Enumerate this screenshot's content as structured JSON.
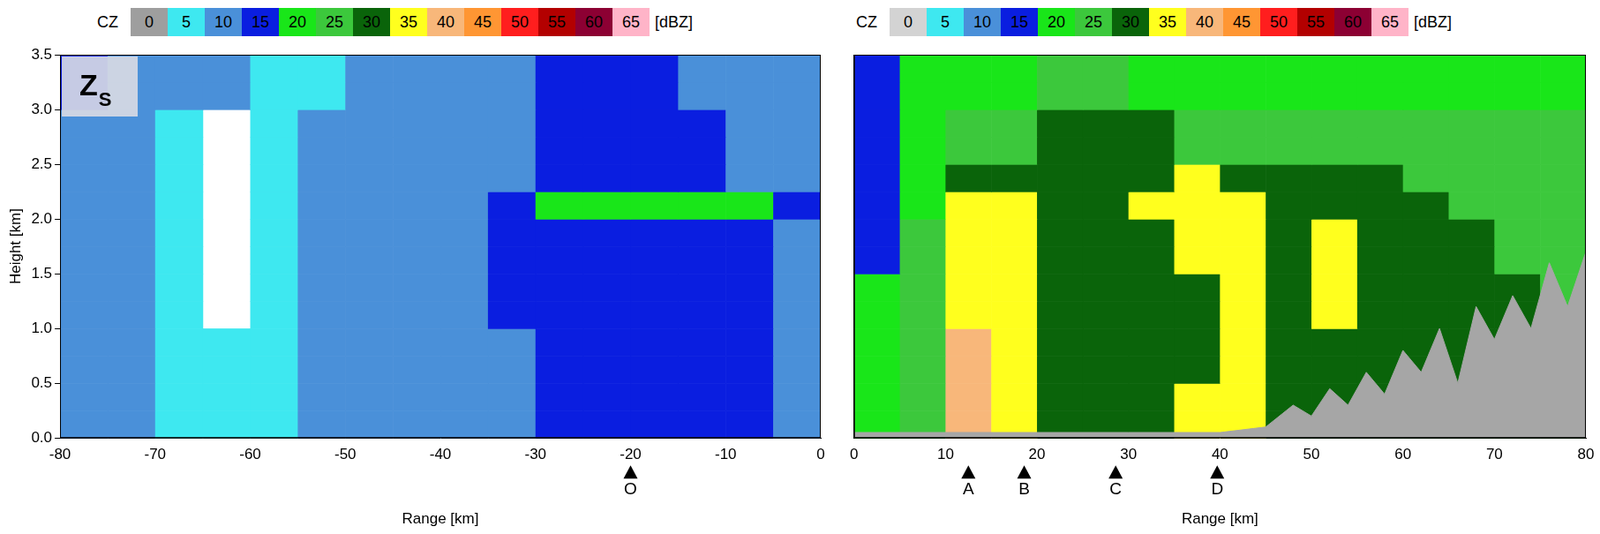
{
  "chart_data": [
    {
      "type": "heatmap",
      "panel_label": {
        "text": "Z",
        "subscript": "S"
      },
      "xlabel": "Range [km]",
      "ylabel": "Height [km]",
      "xlim": [
        -80,
        0
      ],
      "xticks": [
        -80,
        -70,
        -60,
        -50,
        -40,
        -30,
        -20,
        -10,
        0
      ],
      "ylim": [
        0,
        3.5
      ],
      "yticks": [
        {
          "value": 0,
          "label": "0.0"
        },
        0.5,
        {
          "value": 1,
          "label": "1.0"
        },
        1.5,
        {
          "value": 2,
          "label": "2.0"
        },
        2.5,
        {
          "value": 3,
          "label": "3.0"
        },
        3.5
      ],
      "grid": false,
      "colorbar": {
        "label": "CZ",
        "unit": "[dBZ]",
        "ticks": [
          0,
          5,
          10,
          15,
          20,
          25,
          30,
          35,
          40,
          45,
          50,
          55,
          60,
          65
        ],
        "colors": [
          "#9e9e9e",
          "#3ee8f0",
          "#4a90d9",
          "#0a1ee0",
          "#19e619",
          "#3cc83c",
          "#0a640a",
          "#ffff1e",
          "#f8b77a",
          "#ff9633",
          "#ff1e1e",
          "#b30000",
          "#8c0033",
          "#ffb4c8"
        ]
      },
      "cells": {
        "x_edges": [
          -80,
          -75,
          -70,
          -65,
          -60,
          -55,
          -50,
          -45,
          -40,
          -35,
          -30,
          -25,
          -20,
          -15,
          -10,
          -5,
          0
        ],
        "y_edges": [
          0,
          0.25,
          0.5,
          0.75,
          1,
          1.25,
          1.5,
          1.75,
          2,
          2.25,
          2.5,
          2.75,
          3,
          3.25,
          3.5
        ],
        "values": [
          [
            10,
            10,
            5,
            5,
            5,
            10,
            10,
            10,
            10,
            10,
            15,
            15,
            15,
            15,
            15,
            10
          ],
          [
            10,
            10,
            5,
            5,
            5,
            10,
            10,
            10,
            10,
            10,
            15,
            15,
            15,
            15,
            15,
            10
          ],
          [
            10,
            10,
            5,
            5,
            5,
            10,
            10,
            10,
            10,
            10,
            15,
            15,
            15,
            15,
            15,
            10
          ],
          [
            10,
            10,
            5,
            5,
            5,
            10,
            10,
            10,
            10,
            10,
            15,
            15,
            15,
            15,
            15,
            10
          ],
          [
            10,
            10,
            5,
            null,
            5,
            10,
            10,
            10,
            10,
            15,
            15,
            15,
            15,
            15,
            15,
            10
          ],
          [
            10,
            10,
            5,
            null,
            5,
            10,
            10,
            10,
            10,
            15,
            15,
            15,
            15,
            15,
            15,
            10
          ],
          [
            10,
            10,
            5,
            null,
            5,
            10,
            10,
            10,
            10,
            15,
            15,
            15,
            15,
            15,
            15,
            10
          ],
          [
            10,
            10,
            5,
            null,
            5,
            10,
            10,
            10,
            10,
            15,
            15,
            15,
            15,
            15,
            15,
            10
          ],
          [
            10,
            10,
            5,
            null,
            5,
            10,
            10,
            10,
            10,
            15,
            20,
            20,
            20,
            20,
            20,
            15
          ],
          [
            10,
            10,
            5,
            null,
            5,
            10,
            10,
            10,
            10,
            10,
            15,
            15,
            15,
            15,
            10,
            10
          ],
          [
            10,
            10,
            5,
            null,
            5,
            10,
            10,
            10,
            10,
            10,
            15,
            15,
            15,
            15,
            10,
            10
          ],
          [
            10,
            10,
            5,
            null,
            5,
            10,
            10,
            10,
            10,
            10,
            15,
            15,
            15,
            15,
            10,
            10
          ],
          [
            15,
            10,
            10,
            10,
            5,
            5,
            10,
            10,
            10,
            10,
            15,
            15,
            15,
            10,
            10,
            10
          ],
          [
            15,
            10,
            10,
            10,
            5,
            5,
            10,
            10,
            10,
            10,
            15,
            15,
            15,
            10,
            10,
            10
          ]
        ]
      },
      "markers": [
        {
          "x": -20,
          "label": "O"
        }
      ]
    },
    {
      "type": "heatmap",
      "xlabel": "Range [km]",
      "xlim": [
        0,
        80
      ],
      "xticks": [
        0,
        10,
        20,
        30,
        40,
        50,
        60,
        70,
        80
      ],
      "ylim": [
        0,
        3.5
      ],
      "tick_labels": "x",
      "grid": false,
      "colorbar": {
        "label": "CZ",
        "unit": "[dBZ]",
        "ticks": [
          0,
          5,
          10,
          15,
          20,
          25,
          30,
          35,
          40,
          45,
          50,
          55,
          60,
          65
        ],
        "colors": [
          "#d3d3d3",
          "#3ee8f0",
          "#4a90d9",
          "#0a1ee0",
          "#19e619",
          "#3cc83c",
          "#0a640a",
          "#ffff1e",
          "#f8b77a",
          "#ff9633",
          "#ff1e1e",
          "#b30000",
          "#8c0033",
          "#ffb4c8"
        ]
      },
      "cells": {
        "x_edges": [
          0,
          5,
          10,
          15,
          20,
          25,
          30,
          35,
          40,
          45,
          50,
          55,
          60,
          65,
          70,
          75,
          80
        ],
        "y_edges": [
          0,
          0.25,
          0.5,
          0.75,
          1,
          1.25,
          1.5,
          1.75,
          2,
          2.25,
          2.5,
          2.75,
          3,
          3.25,
          3.5
        ],
        "values": [
          [
            20,
            25,
            40,
            35,
            30,
            30,
            30,
            35,
            35,
            30,
            30,
            30,
            30,
            30,
            30,
            30
          ],
          [
            20,
            25,
            40,
            35,
            30,
            30,
            30,
            35,
            35,
            30,
            30,
            30,
            30,
            30,
            30,
            30
          ],
          [
            20,
            25,
            40,
            35,
            30,
            30,
            30,
            30,
            35,
            30,
            30,
            30,
            30,
            30,
            30,
            30
          ],
          [
            20,
            25,
            40,
            35,
            30,
            30,
            30,
            30,
            35,
            30,
            30,
            30,
            30,
            30,
            30,
            30
          ],
          [
            20,
            25,
            35,
            35,
            30,
            30,
            30,
            30,
            35,
            30,
            35,
            30,
            30,
            30,
            30,
            25
          ],
          [
            20,
            25,
            35,
            35,
            30,
            30,
            30,
            30,
            35,
            30,
            35,
            30,
            30,
            30,
            30,
            25
          ],
          [
            15,
            25,
            35,
            35,
            30,
            30,
            30,
            35,
            35,
            30,
            35,
            30,
            30,
            30,
            25,
            25
          ],
          [
            15,
            25,
            35,
            35,
            30,
            30,
            30,
            35,
            35,
            30,
            35,
            30,
            30,
            30,
            25,
            25
          ],
          [
            15,
            20,
            35,
            35,
            30,
            30,
            35,
            35,
            35,
            30,
            30,
            30,
            30,
            25,
            25,
            25
          ],
          [
            15,
            20,
            30,
            30,
            30,
            30,
            30,
            35,
            30,
            30,
            30,
            30,
            25,
            25,
            25,
            25
          ],
          [
            15,
            20,
            25,
            25,
            30,
            30,
            30,
            25,
            25,
            25,
            25,
            25,
            25,
            25,
            25,
            25
          ],
          [
            15,
            20,
            25,
            25,
            30,
            30,
            30,
            25,
            25,
            25,
            25,
            25,
            25,
            25,
            25,
            25
          ],
          [
            15,
            20,
            20,
            20,
            25,
            25,
            20,
            20,
            20,
            20,
            20,
            20,
            20,
            20,
            20,
            20
          ],
          [
            15,
            20,
            20,
            20,
            25,
            25,
            20,
            20,
            20,
            20,
            20,
            20,
            20,
            20,
            20,
            20
          ]
        ]
      },
      "terrain": {
        "color": "#a6a6a6",
        "x": [
          0,
          10,
          20,
          30,
          40,
          45,
          48,
          50,
          52,
          54,
          56,
          58,
          60,
          62,
          64,
          66,
          68,
          70,
          72,
          74,
          76,
          78,
          80
        ],
        "values": [
          0.05,
          0.05,
          0.05,
          0.05,
          0.05,
          0.1,
          0.3,
          0.2,
          0.45,
          0.3,
          0.6,
          0.4,
          0.8,
          0.6,
          1.0,
          0.5,
          1.2,
          0.9,
          1.3,
          1.0,
          1.6,
          1.2,
          1.7
        ]
      },
      "markers": [
        {
          "x": 12.5,
          "label": "A"
        },
        {
          "x": 18.6,
          "label": "B"
        },
        {
          "x": 28.6,
          "label": "C"
        },
        {
          "x": 39.7,
          "label": "D"
        }
      ]
    }
  ]
}
